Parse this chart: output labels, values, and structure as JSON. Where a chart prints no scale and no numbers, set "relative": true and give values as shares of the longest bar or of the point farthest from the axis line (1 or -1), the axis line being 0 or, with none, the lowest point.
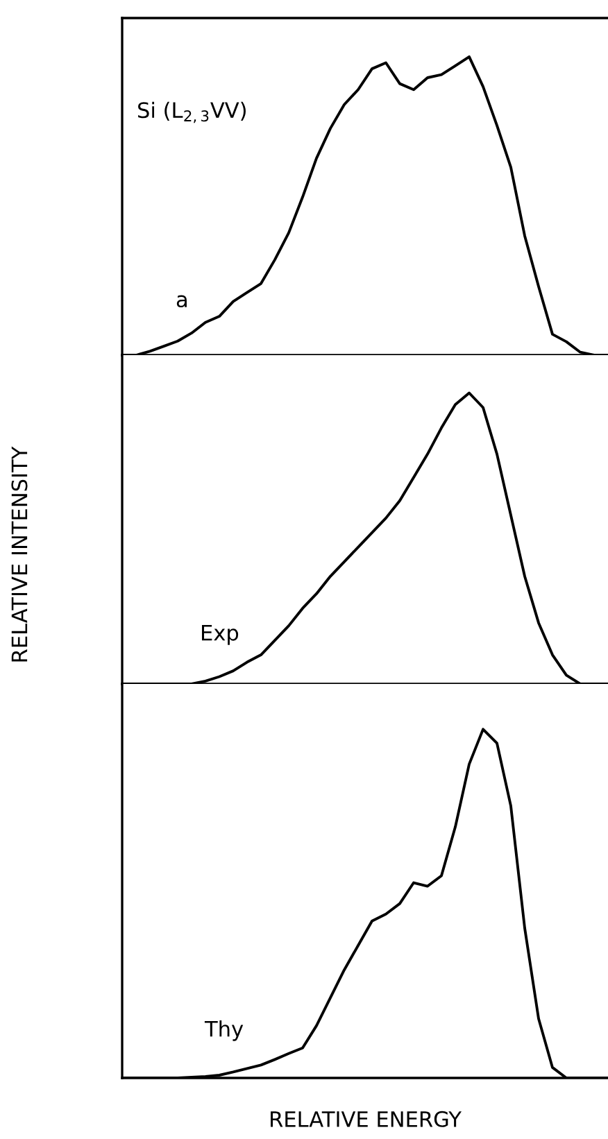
{
  "chart_data": [
    {
      "type": "line",
      "relative": true,
      "categories": [
        null,
        null,
        null,
        null,
        null,
        null,
        null,
        null,
        null,
        null,
        null,
        null,
        null,
        null,
        null,
        null,
        null,
        null,
        null,
        null,
        null,
        null,
        null,
        null,
        null,
        null,
        null,
        null,
        null,
        null,
        null,
        null,
        null,
        null,
        null,
        null
      ],
      "series": [
        {
          "color": "#000000",
          "values": [
            0,
            0,
            0.013,
            0.03,
            0.047,
            0.074,
            0.11,
            0.13,
            0.18,
            0.21,
            0.24,
            0.32,
            0.41,
            0.53,
            0.66,
            0.76,
            0.84,
            0.89,
            0.96,
            0.98,
            0.91,
            0.89,
            0.93,
            0.94,
            0.97,
            1.0,
            0.9,
            0.77,
            0.63,
            0.4,
            0.23,
            0.07,
            0.045,
            0.01,
            0,
            0
          ]
        }
      ],
      "annotations": [
        "Si (L$_{2,3}$VV)",
        "a"
      ]
    },
    {
      "type": "line",
      "relative": true,
      "ylabel": "RELATIVE INTENSITY",
      "categories": [
        null,
        null,
        null,
        null,
        null,
        null,
        null,
        null,
        null,
        null,
        null,
        null,
        null,
        null,
        null,
        null,
        null,
        null,
        null,
        null,
        null,
        null,
        null,
        null,
        null,
        null,
        null,
        null,
        null,
        null,
        null,
        null,
        null,
        null,
        null,
        null
      ],
      "series": [
        {
          "color": "#000000",
          "values": [
            0,
            0,
            0,
            0,
            0,
            0,
            0.01,
            0.025,
            0.045,
            0.075,
            0.1,
            0.15,
            0.2,
            0.26,
            0.31,
            0.37,
            0.42,
            0.47,
            0.52,
            0.57,
            0.63,
            0.71,
            0.79,
            0.88,
            0.96,
            1.0,
            0.95,
            0.79,
            0.58,
            0.37,
            0.21,
            0.1,
            0.03,
            0,
            0,
            0
          ]
        }
      ],
      "annotations": [
        "Exp"
      ]
    },
    {
      "type": "line",
      "relative": true,
      "xlabel": "RELATIVE ENERGY",
      "categories": [
        null,
        null,
        null,
        null,
        null,
        null,
        null,
        null,
        null,
        null,
        null,
        null,
        null,
        null,
        null,
        null,
        null,
        null,
        null,
        null,
        null,
        null,
        null,
        null,
        null,
        null,
        null,
        null,
        null,
        null,
        null,
        null,
        null,
        null,
        null,
        null
      ],
      "series": [
        {
          "color": "#000000",
          "values": [
            0,
            0,
            0,
            0,
            0,
            0.002,
            0.004,
            0.008,
            0.017,
            0.027,
            0.037,
            0.053,
            0.07,
            0.086,
            0.15,
            0.23,
            0.31,
            0.38,
            0.45,
            0.47,
            0.5,
            0.56,
            0.55,
            0.58,
            0.72,
            0.9,
            1.0,
            0.96,
            0.78,
            0.43,
            0.17,
            0.03,
            0,
            0,
            0,
            0
          ]
        }
      ],
      "annotations": [
        "Thy"
      ]
    }
  ]
}
